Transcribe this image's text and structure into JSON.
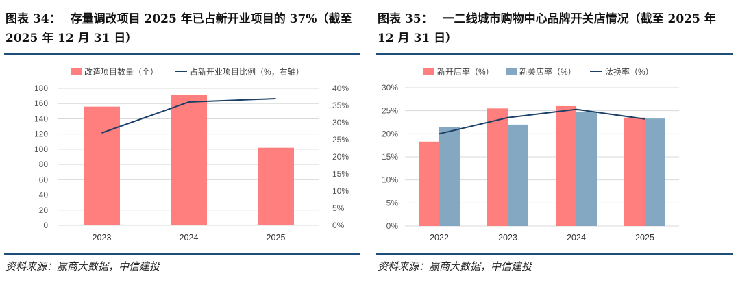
{
  "left": {
    "title_label": "图表 34：",
    "title_text": "存量调改项目 2025 年已占新开业项目的 37%（截至 2025 年 12 月 31 日）",
    "source": "资料来源：赢商大数据，中信建投"
  },
  "right": {
    "title_label": "图表 35：",
    "title_text": "一二线城市购物中心品牌开关店情况（截至 2025 年 12 月 31 日）",
    "source": "资料来源：赢商大数据，中信建投"
  },
  "colors": {
    "red": "#ff7f7f",
    "blue": "#84a8c2",
    "navy": "#1b3f66",
    "rule": "#1f4e79"
  },
  "chart_data": [
    {
      "type": "bar",
      "title": "存量调改项目 2025 年已占新开业项目的 37%",
      "categories": [
        "2023",
        "2024",
        "2025"
      ],
      "series": [
        {
          "name": "改造项目数量（个）",
          "type": "bar",
          "axis": "left",
          "color": "#ff7f7f",
          "values": [
            156,
            171,
            102
          ]
        },
        {
          "name": "占新开业项目比例（%，右轴）",
          "type": "line",
          "axis": "right",
          "color": "#1b3f66",
          "values": [
            27,
            36,
            37
          ]
        }
      ],
      "yleft": {
        "min": 0,
        "max": 180,
        "step": 20,
        "ticks": [
          "0",
          "20",
          "40",
          "60",
          "80",
          "100",
          "120",
          "140",
          "160",
          "180"
        ]
      },
      "yright": {
        "min": 0,
        "max": 40,
        "step": 5,
        "ticks": [
          "0%",
          "5%",
          "10%",
          "15%",
          "20%",
          "25%",
          "30%",
          "35%",
          "40%"
        ]
      },
      "legend": "top"
    },
    {
      "type": "bar",
      "title": "一二线城市购物中心品牌开关店情况",
      "categories": [
        "2022",
        "2023",
        "2024",
        "2025"
      ],
      "series": [
        {
          "name": "新开店率（%）",
          "type": "bar",
          "color": "#ff7f7f",
          "values": [
            18.3,
            25.5,
            26.0,
            23.5
          ]
        },
        {
          "name": "新关店率（%）",
          "type": "bar",
          "color": "#84a8c2",
          "values": [
            21.5,
            22.0,
            24.8,
            23.3
          ]
        },
        {
          "name": "汰换率（%）",
          "type": "line",
          "color": "#1b3f66",
          "values": [
            20.0,
            23.5,
            25.3,
            23.2
          ]
        }
      ],
      "y": {
        "min": 0,
        "max": 30,
        "step": 5,
        "ticks": [
          "0%",
          "5%",
          "10%",
          "15%",
          "20%",
          "25%",
          "30%"
        ]
      },
      "legend": "top"
    }
  ]
}
